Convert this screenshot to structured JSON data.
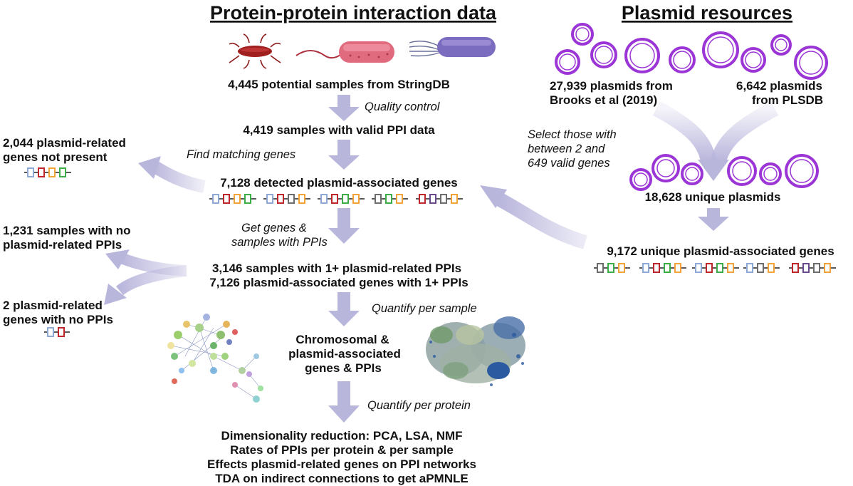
{
  "headings": {
    "ppi": "Protein-protein interaction data",
    "plasmid": "Plasmid resources"
  },
  "nodes": {
    "stringdb": "4,445 potential samples from StringDB",
    "valid": "4,419 samples with valid PPI data",
    "detected": "7,128 detected plasmid-associated genes",
    "samples_ppis": "3,146 samples with 1+ plasmid-related PPIs",
    "genes_ppis": "7,126 plasmid-associated genes with 1+ PPIs",
    "chromosomal": [
      "Chromosomal &",
      "plasmid-associated",
      "genes & PPIs"
    ],
    "not_present": [
      "2,044 plasmid-related",
      "genes not present"
    ],
    "no_ppis_samples": [
      "1,231 samples with no",
      "plasmid-related PPIs"
    ],
    "no_ppis_genes": [
      "2 plasmid-related",
      "genes with no PPIs"
    ],
    "brooks": [
      "27,939 plasmids from",
      "Brooks et al (2019)"
    ],
    "plsdb": [
      "6,642 plasmids",
      "from PLSDB"
    ],
    "unique_plasmids": "18,628 unique plasmids",
    "unique_genes": "9,172 unique plasmid-associated genes",
    "outputs": [
      "Dimensionality reduction: PCA, LSA, NMF",
      "Rates of PPIs per protein & per sample",
      "Effects plasmid-related genes on PPI networks",
      "TDA on indirect connections to get aPMNLE"
    ]
  },
  "steps": {
    "quality": "Quality control",
    "matching": "Find matching genes",
    "get_genes": [
      "Get genes &",
      "samples with PPIs"
    ],
    "per_sample": "Quantify per sample",
    "per_protein": "Quantify per protein",
    "select": [
      "Select those with",
      "between 2 and",
      "649 valid genes"
    ]
  },
  "colors": {
    "arrow": "#b9b6dc",
    "plasmid_ring": "#9b35d6",
    "gene_blue": "#8fa9d6",
    "gene_red": "#c0272d",
    "gene_orange": "#f2a33a",
    "gene_green": "#3cae49",
    "gene_grey": "#6d6d6d",
    "gene_purple": "#6a4a8c"
  }
}
